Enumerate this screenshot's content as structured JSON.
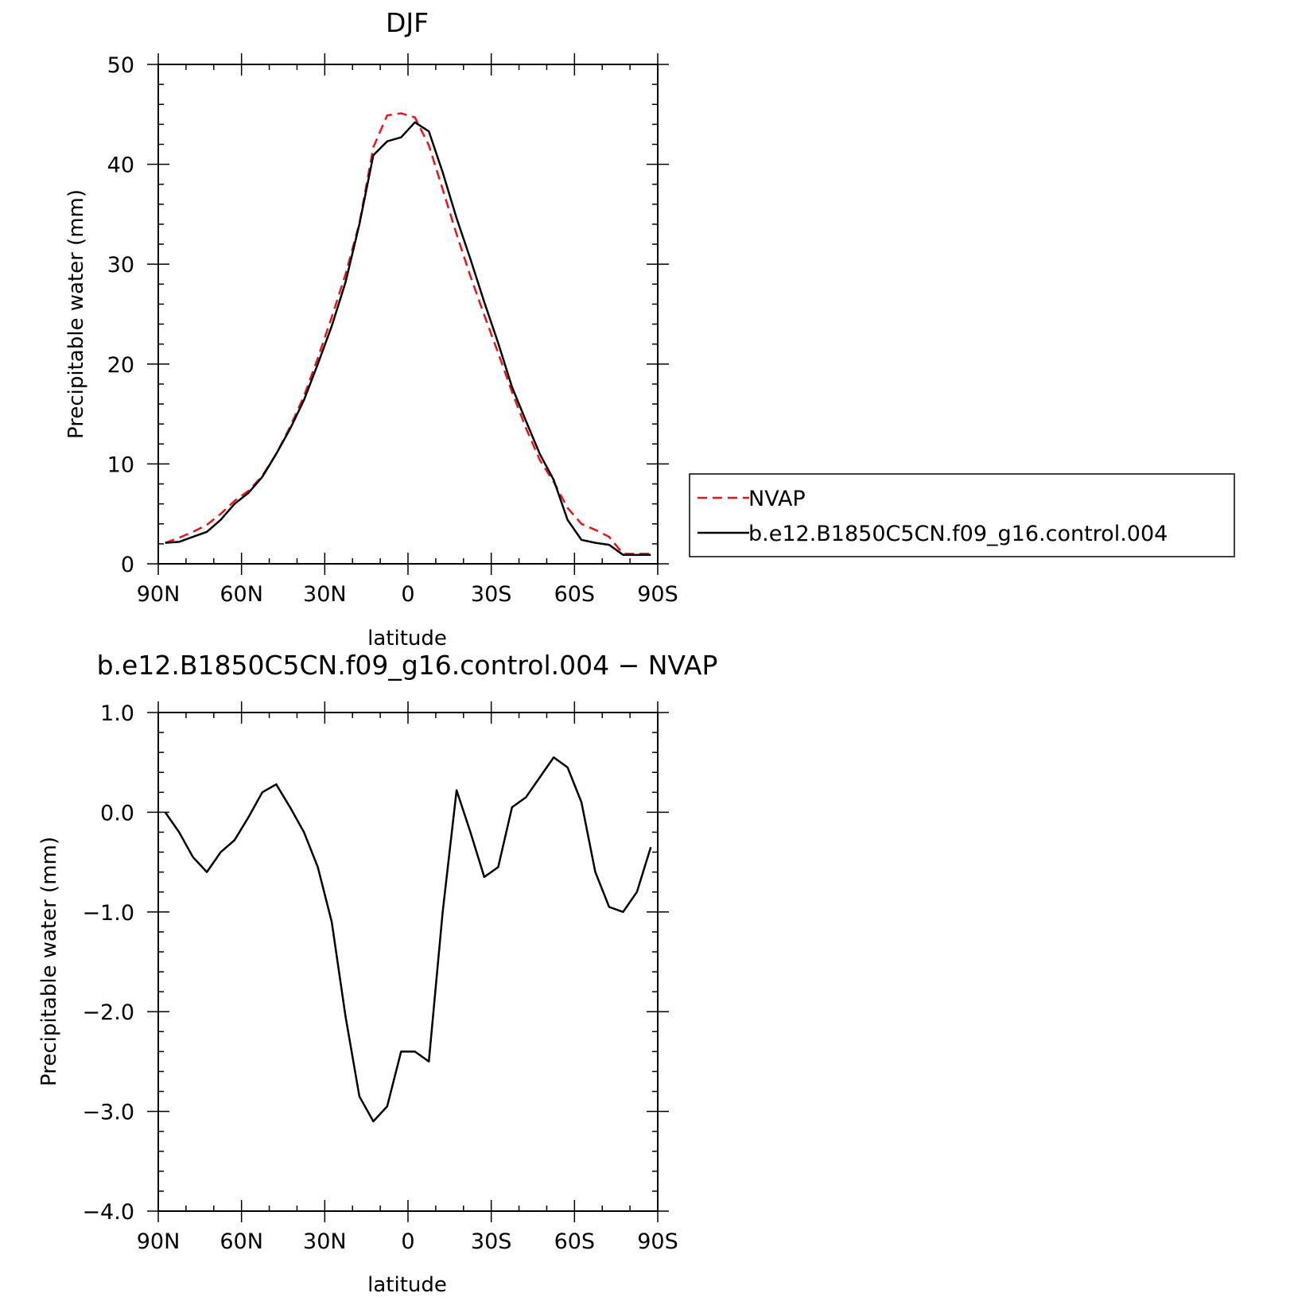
{
  "colors": {
    "nvap": "#e8141a",
    "model": "#000000"
  },
  "chart_data": [
    {
      "type": "line",
      "title": "DJF",
      "xlabel": "latitude",
      "ylabel": "Precipitable water (mm)",
      "xlim": [
        90,
        -90
      ],
      "ylim": [
        0,
        50
      ],
      "xticks": [
        {
          "value": 90,
          "label": "90N"
        },
        {
          "value": 60,
          "label": "60N"
        },
        {
          "value": 30,
          "label": "30N"
        },
        {
          "value": 0,
          "label": "0"
        },
        {
          "value": -30,
          "label": "30S"
        },
        {
          "value": -60,
          "label": "60S"
        },
        {
          "value": -90,
          "label": "90S"
        }
      ],
      "yticks": [
        {
          "value": 0,
          "label": "0"
        },
        {
          "value": 10,
          "label": "10"
        },
        {
          "value": 20,
          "label": "20"
        },
        {
          "value": 30,
          "label": "30"
        },
        {
          "value": 40,
          "label": "40"
        },
        {
          "value": 50,
          "label": "50"
        }
      ],
      "legend": {
        "placement": "outside-right",
        "entries": [
          "NVAP",
          "b.e12.B1850C5CN.f09_g16.control.004"
        ]
      },
      "series": [
        {
          "name": "NVAP",
          "style": "dashed",
          "color": "#e8141a",
          "x": [
            87.5,
            82.5,
            77.5,
            72.5,
            67.5,
            62.5,
            57.5,
            52.5,
            47.5,
            42.5,
            37.5,
            32.5,
            27.5,
            22.5,
            17.5,
            12.5,
            7.5,
            2.5,
            -2.5,
            -7.5,
            -12.5,
            -17.5,
            -22.5,
            -27.5,
            -32.5,
            -37.5,
            -42.5,
            -47.5,
            -52.5,
            -57.5,
            -62.5,
            -67.5,
            -72.5,
            -77.5,
            -82.5,
            -87.5
          ],
          "y": [
            2.1,
            2.6,
            3.2,
            3.9,
            5.0,
            6.3,
            7.3,
            8.8,
            11.0,
            13.7,
            16.8,
            20.6,
            24.7,
            29.0,
            34.1,
            41.7,
            44.9,
            45.1,
            44.7,
            41.9,
            37.5,
            33.0,
            28.8,
            24.9,
            21.1,
            17.2,
            13.6,
            10.4,
            8.2,
            5.6,
            4.0,
            3.4,
            2.7,
            1.0,
            1.0,
            1.0
          ]
        },
        {
          "name": "b.e12.B1850C5CN.f09_g16.control.004",
          "style": "solid",
          "color": "#000000",
          "x": [
            87.5,
            82.5,
            77.5,
            72.5,
            67.5,
            62.5,
            57.5,
            52.5,
            47.5,
            42.5,
            37.5,
            32.5,
            27.5,
            22.5,
            17.5,
            12.5,
            7.5,
            2.5,
            -2.5,
            -7.5,
            -12.5,
            -17.5,
            -22.5,
            -27.5,
            -32.5,
            -37.5,
            -42.5,
            -47.5,
            -52.5,
            -57.5,
            -62.5,
            -67.5,
            -72.5,
            -77.5,
            -82.5,
            -87.5
          ],
          "y": [
            2.1,
            2.2,
            2.7,
            3.2,
            4.4,
            6.0,
            7.1,
            8.7,
            11.0,
            13.5,
            16.4,
            20.0,
            23.8,
            28.2,
            34.0,
            40.9,
            42.3,
            42.7,
            44.2,
            43.3,
            39.2,
            34.6,
            30.5,
            26.2,
            22.1,
            17.7,
            14.3,
            11.0,
            8.4,
            4.4,
            2.4,
            2.1,
            1.9,
            0.9,
            0.9,
            0.9
          ]
        }
      ]
    },
    {
      "type": "line",
      "title": "b.e12.B1850C5CN.f09_g16.control.004 − NVAP",
      "xlabel": "latitude",
      "ylabel": "Precipitable water (mm)",
      "xlim": [
        90,
        -90
      ],
      "ylim": [
        -4.0,
        1.0
      ],
      "xticks": [
        {
          "value": 90,
          "label": "90N"
        },
        {
          "value": 60,
          "label": "60N"
        },
        {
          "value": 30,
          "label": "30N"
        },
        {
          "value": 0,
          "label": "0"
        },
        {
          "value": -30,
          "label": "30S"
        },
        {
          "value": -60,
          "label": "60S"
        },
        {
          "value": -90,
          "label": "90S"
        }
      ],
      "yticks": [
        {
          "value": 1.0,
          "label": "1.0"
        },
        {
          "value": 0.0,
          "label": "0.0"
        },
        {
          "value": -1.0,
          "label": "−1.0"
        },
        {
          "value": -2.0,
          "label": "−2.0"
        },
        {
          "value": -3.0,
          "label": "−3.0"
        },
        {
          "value": -4.0,
          "label": "−4.0"
        }
      ],
      "series": [
        {
          "style": "solid",
          "color": "#000000",
          "x": [
            87.5,
            82.5,
            77.5,
            72.5,
            67.5,
            62.5,
            57.5,
            52.5,
            47.5,
            42.5,
            37.5,
            32.5,
            27.5,
            22.5,
            17.5,
            12.5,
            7.5,
            2.5,
            -2.5,
            -7.5,
            -12.5,
            -17.5,
            -22.5,
            -27.5,
            -32.5,
            -37.5,
            -42.5,
            -47.5,
            -52.5,
            -57.5,
            -62.5,
            -67.5,
            -72.5,
            -77.5,
            -82.5,
            -87.5
          ],
          "y": [
            0.0,
            -0.2,
            -0.45,
            -0.6,
            -0.4,
            -0.28,
            -0.05,
            0.2,
            0.28,
            0.05,
            -0.2,
            -0.55,
            -1.1,
            -2.05,
            -2.85,
            -3.1,
            -2.95,
            -2.4,
            -2.4,
            -2.5,
            -1.0,
            0.22,
            -0.2,
            -0.65,
            -0.55,
            0.05,
            0.15,
            0.35,
            0.55,
            0.45,
            0.1,
            -0.6,
            -0.95,
            -1.0,
            -0.8,
            -0.35
          ]
        }
      ]
    }
  ]
}
